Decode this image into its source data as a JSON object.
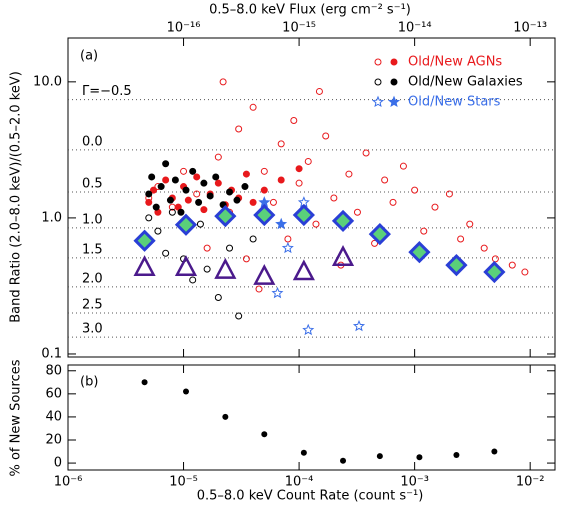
{
  "chart_data": {
    "type": "scatter",
    "top_axis_label": "0.5–8.0 keV Flux (erg cm⁻² s⁻¹)",
    "x_label": "0.5–8.0 keV Count Rate (count s⁻¹)",
    "y_label": "Band Ratio (2.0–8.0 keV)/(0.5–2.0 keV)",
    "panel_label": "(a)",
    "xlim": [
      1e-06,
      0.0164
    ],
    "log_x": true,
    "xticks": [
      {
        "value": 1e-06,
        "label": "10⁻⁶"
      },
      {
        "value": 1e-05,
        "label": "10⁻⁵"
      },
      {
        "value": 0.0001,
        "label": "10⁻⁴"
      },
      {
        "value": 0.001,
        "label": "10⁻³"
      },
      {
        "value": 0.01,
        "label": "10⁻²"
      }
    ],
    "top_xlim": [
      1e-17,
      1.64e-13
    ],
    "top_xticks": [
      {
        "value": 1e-16,
        "label": "10⁻¹⁶"
      },
      {
        "value": 1e-15,
        "label": "10⁻¹⁵"
      },
      {
        "value": 1e-14,
        "label": "10⁻¹⁴"
      },
      {
        "value": 1e-13,
        "label": "10⁻¹³"
      }
    ],
    "ylim": [
      0.095,
      21
    ],
    "log_y": true,
    "yticks": [
      0.1,
      {
        "value": 1,
        "label": "1.0"
      },
      {
        "value": 10,
        "label": "10.0"
      }
    ],
    "gamma_lines": [
      {
        "value": 7.4,
        "label": "Γ=−0.5"
      },
      {
        "value": 3.16,
        "label": "0.0"
      },
      {
        "value": 1.55,
        "label": "0.5"
      },
      {
        "value": 0.845,
        "label": "1.0"
      },
      {
        "value": 0.508,
        "label": "1.5"
      },
      {
        "value": 0.311,
        "label": "2.0"
      },
      {
        "value": 0.2,
        "label": "2.5"
      },
      {
        "value": 0.133,
        "label": "3.0"
      }
    ],
    "legend": [
      {
        "label": "Old/New AGNs",
        "color": "#e8191c",
        "marker": "circle"
      },
      {
        "label": "Old/New Galaxies",
        "color": "#000000",
        "marker": "circle"
      },
      {
        "label": "Old/New Stars",
        "color": "#3b6fe8",
        "marker": "star"
      }
    ],
    "series": [
      {
        "color": "#e8191c",
        "marker": "circle",
        "filled": false,
        "x": [
          5e-06,
          6e-06,
          8e-06,
          1e-05,
          1.3e-05,
          1.6e-05,
          2e-05,
          2.5e-05,
          3e-05,
          3.5e-05,
          4e-05,
          5e-05,
          6e-05,
          7e-05,
          8e-05,
          9e-05,
          0.0001,
          0.00012,
          0.00014,
          0.00017,
          0.0002,
          0.00023,
          0.00027,
          0.00032,
          0.00038,
          0.00045,
          0.00055,
          0.00065,
          0.0008,
          0.001,
          0.0012,
          0.0015,
          0.002,
          0.0025,
          0.003,
          0.004,
          0.005,
          0.007,
          0.009,
          2.2e-05,
          4.5e-05,
          0.00015
        ],
        "values": [
          1.4,
          1.7,
          1.2,
          2.2,
          1.5,
          0.6,
          2.8,
          1.1,
          4.5,
          0.5,
          6.5,
          2.2,
          1.3,
          3.5,
          0.7,
          5.2,
          1.8,
          2.6,
          0.9,
          4.0,
          1.4,
          0.45,
          2.1,
          1.1,
          3.0,
          0.65,
          1.9,
          1.3,
          2.4,
          1.6,
          0.8,
          1.2,
          1.5,
          0.7,
          0.9,
          0.6,
          0.5,
          0.45,
          0.4,
          10,
          0.3,
          8.5
        ]
      },
      {
        "color": "#e8191c",
        "marker": "circle",
        "filled": true,
        "x": [
          5e-06,
          5.5e-06,
          6e-06,
          7e-06,
          8e-06,
          9e-06,
          1e-05,
          1.1e-05,
          1.3e-05,
          1.5e-05,
          1.7e-05,
          2e-05,
          2.3e-05,
          2.6e-05,
          3e-05,
          3.5e-05,
          4e-05,
          5e-05,
          7e-05,
          0.0001
        ],
        "values": [
          1.3,
          1.6,
          1.1,
          1.9,
          1.4,
          1.2,
          1.7,
          1.35,
          2.0,
          1.15,
          1.5,
          1.8,
          1.25,
          1.6,
          1.4,
          2.1,
          1.3,
          1.6,
          1.9,
          2.3
        ]
      },
      {
        "color": "#000000",
        "marker": "circle",
        "filled": false,
        "x": [
          5e-06,
          6e-06,
          7e-06,
          8e-06,
          1e-05,
          1.2e-05,
          1.4e-05,
          1.6e-05,
          2e-05,
          2.5e-05,
          3e-05,
          4e-05
        ],
        "values": [
          1.0,
          0.8,
          0.55,
          1.1,
          0.5,
          0.35,
          0.9,
          0.42,
          0.26,
          0.6,
          0.19,
          0.7
        ]
      },
      {
        "color": "#000000",
        "marker": "circle",
        "filled": true,
        "x": [
          5e-06,
          5.3e-06,
          5.8e-06,
          6.4e-06,
          7e-06,
          7.7e-06,
          8.5e-06,
          9.5e-06,
          1.05e-05,
          1.2e-05,
          1.35e-05,
          1.5e-05,
          1.7e-05,
          1.9e-05,
          2.2e-05,
          2.5e-05,
          2.9e-05,
          3.4e-05
        ],
        "values": [
          1.5,
          2.0,
          1.2,
          1.7,
          2.5,
          1.35,
          1.9,
          1.1,
          1.6,
          2.2,
          1.3,
          1.8,
          1.45,
          2.0,
          1.25,
          1.55,
          1.35,
          1.7
        ]
      },
      {
        "color": "#3b6fe8",
        "marker": "star",
        "filled": false,
        "x": [
          0.00033,
          0.00012,
          6.5e-05,
          8e-05,
          0.00011
        ],
        "values": [
          0.16,
          0.15,
          0.28,
          0.6,
          1.3
        ]
      },
      {
        "color": "#3b6fe8",
        "marker": "star",
        "filled": true,
        "x": [
          5e-05,
          7e-05
        ],
        "values": [
          1.3,
          0.9
        ]
      },
      {
        "color": "#2a3fd6",
        "marker": "diamond",
        "filled": true,
        "fill": "#5ad07a",
        "x": [
          4.6e-06,
          1.05e-05,
          2.3e-05,
          5e-05,
          0.00011,
          0.00024,
          0.0005,
          0.0011,
          0.0023,
          0.0049
        ],
        "values": [
          0.68,
          0.89,
          1.03,
          1.05,
          1.05,
          0.95,
          0.76,
          0.56,
          0.45,
          0.4
        ]
      },
      {
        "color": "#4b1a8c",
        "marker": "triangle",
        "filled": false,
        "x": [
          4.6e-06,
          1.05e-05,
          2.3e-05,
          5e-05,
          0.00011,
          0.00024
        ],
        "values": [
          0.43,
          0.43,
          0.41,
          0.37,
          0.4,
          0.51
        ]
      }
    ],
    "bottom": {
      "type": "scatter",
      "panel_label": "(b)",
      "y_label": "% of New Sources",
      "ylim": [
        -6,
        85
      ],
      "yticks": [
        0,
        20,
        40,
        60,
        80
      ],
      "color": "#000000",
      "x": [
        4.6e-06,
        1.05e-05,
        2.3e-05,
        5e-05,
        0.00011,
        0.00024,
        0.0005,
        0.0011,
        0.0023,
        0.0049
      ],
      "values": [
        70,
        62,
        40,
        25,
        9,
        2,
        6,
        5,
        7,
        10
      ]
    }
  }
}
